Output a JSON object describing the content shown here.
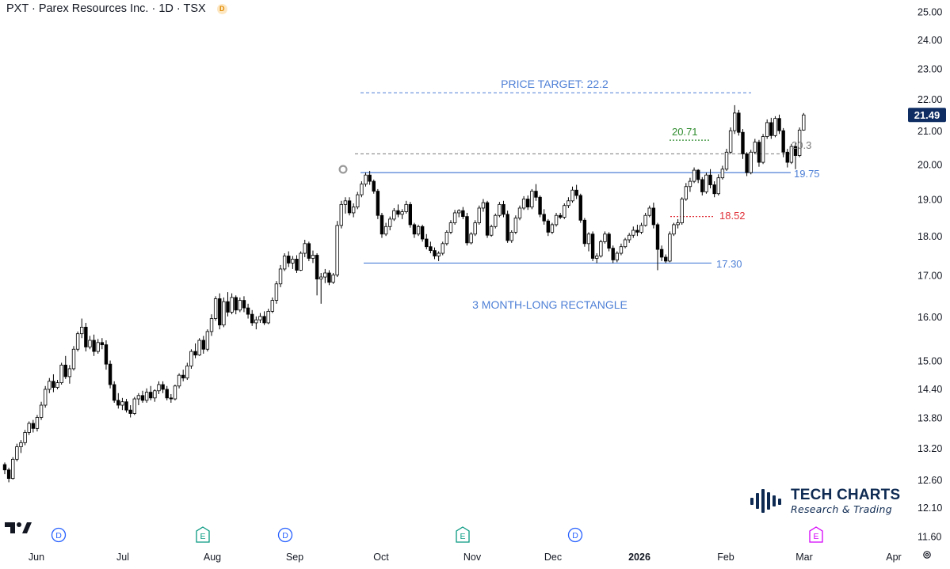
{
  "header": {
    "symbol_text": "PXT · Parex Resources Inc. · 1D · TSX",
    "badge": "D"
  },
  "branding": {
    "title": "TECH CHARTS",
    "subtitle": "Research & Trading"
  },
  "chart_data": {
    "type": "candlestick",
    "scale": "log",
    "yticks": [
      11.6,
      12.1,
      12.6,
      13.2,
      13.8,
      14.4,
      15.0,
      16.0,
      17.0,
      18.0,
      19.0,
      20.0,
      21.0,
      22.0,
      23.0,
      24.0,
      25.0
    ],
    "ylim": [
      11.4,
      25.6
    ],
    "months": [
      "Jun",
      "Jul",
      "Aug",
      "Sep",
      "Oct",
      "Nov",
      "Dec",
      "2026",
      "Feb",
      "Mar",
      "Apr"
    ],
    "last_price": "21.49",
    "annotations": {
      "price_target": "PRICE TARGET: 22.2",
      "pattern": "3 MONTH-LONG RECTANGLE",
      "level_upper": "19.75",
      "level_lower": "17.30",
      "level_203": "20.3",
      "level_2071": "20.71",
      "level_1852": "18.52"
    },
    "levels": {
      "target": 22.2,
      "upper": 19.75,
      "lower": 17.3,
      "l203": 20.3,
      "l2071": 20.71,
      "l1852": 18.52
    },
    "events": [
      {
        "type": "D",
        "month_index": 0
      },
      {
        "type": "E",
        "month_index": 2
      },
      {
        "type": "D",
        "month_index": 3
      },
      {
        "type": "E",
        "month_index": 5
      },
      {
        "type": "D",
        "month_index": 6
      },
      {
        "type": "E",
        "month_index": 9
      }
    ],
    "colors": {
      "up": "#ffffff",
      "down": "#000000",
      "line_blue": "#4d7fd6",
      "green": "#2e8b2e",
      "red": "#e0313a",
      "grey": "#7a7a7a",
      "event_blue": "#2962ff",
      "event_green": "#089981",
      "event_pink": "#d500f9"
    },
    "candles": [
      [
        12.88,
        12.92,
        12.7,
        12.78
      ],
      [
        12.78,
        12.82,
        12.55,
        12.62
      ],
      [
        12.62,
        13.02,
        12.6,
        12.98
      ],
      [
        12.98,
        13.28,
        12.94,
        13.22
      ],
      [
        13.22,
        13.35,
        13.1,
        13.3
      ],
      [
        13.3,
        13.55,
        13.25,
        13.5
      ],
      [
        13.5,
        13.72,
        13.45,
        13.68
      ],
      [
        13.68,
        13.75,
        13.5,
        13.58
      ],
      [
        13.58,
        13.85,
        13.52,
        13.8
      ],
      [
        13.8,
        14.12,
        13.75,
        14.05
      ],
      [
        14.05,
        14.45,
        14.0,
        14.38
      ],
      [
        14.38,
        14.62,
        14.3,
        14.55
      ],
      [
        14.55,
        14.7,
        14.32,
        14.42
      ],
      [
        14.42,
        14.58,
        14.38,
        14.52
      ],
      [
        14.52,
        14.95,
        14.48,
        14.9
      ],
      [
        14.9,
        15.1,
        14.6,
        14.65
      ],
      [
        14.65,
        14.9,
        14.5,
        14.82
      ],
      [
        14.82,
        15.32,
        14.78,
        15.25
      ],
      [
        15.25,
        15.65,
        15.2,
        15.6
      ],
      [
        15.6,
        15.95,
        15.5,
        15.75
      ],
      [
        15.75,
        15.85,
        15.2,
        15.3
      ],
      [
        15.3,
        15.55,
        15.25,
        15.45
      ],
      [
        15.45,
        15.58,
        15.1,
        15.2
      ],
      [
        15.2,
        15.48,
        15.15,
        15.4
      ],
      [
        15.4,
        15.5,
        15.25,
        15.35
      ],
      [
        15.35,
        15.45,
        14.8,
        14.92
      ],
      [
        14.92,
        15.0,
        14.4,
        14.48
      ],
      [
        14.48,
        14.55,
        14.1,
        14.15
      ],
      [
        14.15,
        14.3,
        13.98,
        14.05
      ],
      [
        14.05,
        14.2,
        13.95,
        14.12
      ],
      [
        14.12,
        14.18,
        13.9,
        13.95
      ],
      [
        13.95,
        14.05,
        13.8,
        13.88
      ],
      [
        13.88,
        14.22,
        13.85,
        14.18
      ],
      [
        14.18,
        14.3,
        14.05,
        14.25
      ],
      [
        14.25,
        14.35,
        14.1,
        14.15
      ],
      [
        14.15,
        14.4,
        14.1,
        14.32
      ],
      [
        14.32,
        14.45,
        14.15,
        14.2
      ],
      [
        14.2,
        14.38,
        14.12,
        14.35
      ],
      [
        14.35,
        14.55,
        14.28,
        14.48
      ],
      [
        14.48,
        14.55,
        14.3,
        14.38
      ],
      [
        14.38,
        14.45,
        14.15,
        14.2
      ],
      [
        14.2,
        14.28,
        14.1,
        14.18
      ],
      [
        14.18,
        14.48,
        14.15,
        14.45
      ],
      [
        14.45,
        14.72,
        14.4,
        14.68
      ],
      [
        14.68,
        14.8,
        14.55,
        14.62
      ],
      [
        14.62,
        14.95,
        14.58,
        14.88
      ],
      [
        14.88,
        15.25,
        14.82,
        15.2
      ],
      [
        15.2,
        15.38,
        15.05,
        15.12
      ],
      [
        15.12,
        15.5,
        15.1,
        15.45
      ],
      [
        15.45,
        15.55,
        15.15,
        15.25
      ],
      [
        15.25,
        15.7,
        15.2,
        15.65
      ],
      [
        15.65,
        16.05,
        15.55,
        15.95
      ],
      [
        15.95,
        16.48,
        15.9,
        16.42
      ],
      [
        16.42,
        16.55,
        15.7,
        15.8
      ],
      [
        15.8,
        16.45,
        15.75,
        16.35
      ],
      [
        16.35,
        16.58,
        16.0,
        16.1
      ],
      [
        16.1,
        16.55,
        16.05,
        16.45
      ],
      [
        16.45,
        16.5,
        16.05,
        16.15
      ],
      [
        16.15,
        16.45,
        16.1,
        16.38
      ],
      [
        16.38,
        16.48,
        16.1,
        16.2
      ],
      [
        16.2,
        16.3,
        15.95,
        16.05
      ],
      [
        16.05,
        16.15,
        15.78,
        15.85
      ],
      [
        15.85,
        16.0,
        15.7,
        15.92
      ],
      [
        15.92,
        16.08,
        15.85,
        16.0
      ],
      [
        16.0,
        16.12,
        15.8,
        15.85
      ],
      [
        15.85,
        16.18,
        15.82,
        16.12
      ],
      [
        16.12,
        16.45,
        16.08,
        16.38
      ],
      [
        16.38,
        16.85,
        16.3,
        16.78
      ],
      [
        16.78,
        17.25,
        16.7,
        17.15
      ],
      [
        17.15,
        17.55,
        17.1,
        17.48
      ],
      [
        17.48,
        17.6,
        17.2,
        17.3
      ],
      [
        17.3,
        17.48,
        17.15,
        17.4
      ],
      [
        17.4,
        17.5,
        17.05,
        17.12
      ],
      [
        17.12,
        17.6,
        17.1,
        17.55
      ],
      [
        17.55,
        17.9,
        17.45,
        17.8
      ],
      [
        17.8,
        17.85,
        17.35,
        17.42
      ],
      [
        17.42,
        17.62,
        17.3,
        17.5
      ],
      [
        17.5,
        17.55,
        16.5,
        16.9
      ],
      [
        16.9,
        17.05,
        16.3,
        16.95
      ],
      [
        16.95,
        17.15,
        16.8,
        17.05
      ],
      [
        17.05,
        17.12,
        16.75,
        16.82
      ],
      [
        16.82,
        17.05,
        16.78,
        17.0
      ],
      [
        17.0,
        18.4,
        16.95,
        18.28
      ],
      [
        18.28,
        18.95,
        18.2,
        18.85
      ],
      [
        18.85,
        19.05,
        18.6,
        18.95
      ],
      [
        18.95,
        19.05,
        18.55,
        18.62
      ],
      [
        18.62,
        18.88,
        18.5,
        18.78
      ],
      [
        18.78,
        19.2,
        18.72,
        19.12
      ],
      [
        19.12,
        19.5,
        19.05,
        19.42
      ],
      [
        19.42,
        19.75,
        19.35,
        19.68
      ],
      [
        19.68,
        19.8,
        19.4,
        19.5
      ],
      [
        19.5,
        19.55,
        19.15,
        19.22
      ],
      [
        19.22,
        19.28,
        18.45,
        18.55
      ],
      [
        18.55,
        18.62,
        17.95,
        18.05
      ],
      [
        18.05,
        18.35,
        18.0,
        18.25
      ],
      [
        18.25,
        18.52,
        18.15,
        18.45
      ],
      [
        18.45,
        18.75,
        18.4,
        18.68
      ],
      [
        18.68,
        18.85,
        18.5,
        18.58
      ],
      [
        18.58,
        18.72,
        18.45,
        18.65
      ],
      [
        18.65,
        18.95,
        18.6,
        18.85
      ],
      [
        18.85,
        18.92,
        18.22,
        18.3
      ],
      [
        18.3,
        18.35,
        17.95,
        18.05
      ],
      [
        18.05,
        18.3,
        18.0,
        18.25
      ],
      [
        18.25,
        18.3,
        17.85,
        17.92
      ],
      [
        17.92,
        18.05,
        17.65,
        17.72
      ],
      [
        17.72,
        17.85,
        17.55,
        17.62
      ],
      [
        17.62,
        17.7,
        17.4,
        17.48
      ],
      [
        17.48,
        17.6,
        17.35,
        17.55
      ],
      [
        17.55,
        17.85,
        17.5,
        17.8
      ],
      [
        17.8,
        18.15,
        17.75,
        18.1
      ],
      [
        18.1,
        18.42,
        18.05,
        18.35
      ],
      [
        18.35,
        18.7,
        18.3,
        18.62
      ],
      [
        18.62,
        18.72,
        18.5,
        18.68
      ],
      [
        18.68,
        18.78,
        18.45,
        18.52
      ],
      [
        18.52,
        18.62,
        17.75,
        17.82
      ],
      [
        17.82,
        18.1,
        17.78,
        18.05
      ],
      [
        18.05,
        18.42,
        18.0,
        18.35
      ],
      [
        18.35,
        18.82,
        18.3,
        18.75
      ],
      [
        18.75,
        19.0,
        18.65,
        18.9
      ],
      [
        18.9,
        18.95,
        17.95,
        18.02
      ],
      [
        18.02,
        18.3,
        17.98,
        18.25
      ],
      [
        18.25,
        18.6,
        18.2,
        18.55
      ],
      [
        18.55,
        18.92,
        18.5,
        18.85
      ],
      [
        18.85,
        18.95,
        18.5,
        18.58
      ],
      [
        18.58,
        18.68,
        17.82,
        17.88
      ],
      [
        17.88,
        18.15,
        17.82,
        18.1
      ],
      [
        18.1,
        18.55,
        18.05,
        18.48
      ],
      [
        18.48,
        18.82,
        18.42,
        18.75
      ],
      [
        18.75,
        19.08,
        18.7,
        19.0
      ],
      [
        19.0,
        19.1,
        18.7,
        18.78
      ],
      [
        18.78,
        19.28,
        18.72,
        19.22
      ],
      [
        19.22,
        19.42,
        18.95,
        19.05
      ],
      [
        19.05,
        19.1,
        18.5,
        18.58
      ],
      [
        18.58,
        18.72,
        18.3,
        18.4
      ],
      [
        18.4,
        18.45,
        18.0,
        18.1
      ],
      [
        18.1,
        18.35,
        18.05,
        18.3
      ],
      [
        18.3,
        18.62,
        18.25,
        18.55
      ],
      [
        18.55,
        18.62,
        18.45,
        18.5
      ],
      [
        18.5,
        18.88,
        18.45,
        18.82
      ],
      [
        18.82,
        19.05,
        18.75,
        18.95
      ],
      [
        18.95,
        19.35,
        18.9,
        19.25
      ],
      [
        19.25,
        19.4,
        19.0,
        19.1
      ],
      [
        19.1,
        19.15,
        18.35,
        18.42
      ],
      [
        18.42,
        18.48,
        17.72,
        17.8
      ],
      [
        17.8,
        18.1,
        17.6,
        18.05
      ],
      [
        18.05,
        18.12,
        17.35,
        17.42
      ],
      [
        17.42,
        17.55,
        17.3,
        17.48
      ],
      [
        17.48,
        17.9,
        17.44,
        17.85
      ],
      [
        17.85,
        18.12,
        17.8,
        18.05
      ],
      [
        18.05,
        18.1,
        17.6,
        17.68
      ],
      [
        17.68,
        17.75,
        17.3,
        17.38
      ],
      [
        17.38,
        17.6,
        17.32,
        17.55
      ],
      [
        17.55,
        17.8,
        17.5,
        17.72
      ],
      [
        17.72,
        17.95,
        17.68,
        17.9
      ],
      [
        17.9,
        18.08,
        17.82,
        18.02
      ],
      [
        18.02,
        18.25,
        17.95,
        18.15
      ],
      [
        18.15,
        18.3,
        18.0,
        18.1
      ],
      [
        18.1,
        18.35,
        18.05,
        18.28
      ],
      [
        18.28,
        18.62,
        18.25,
        18.55
      ],
      [
        18.55,
        18.82,
        18.5,
        18.75
      ],
      [
        18.75,
        18.9,
        18.2,
        18.3
      ],
      [
        18.3,
        18.35,
        17.12,
        17.65
      ],
      [
        17.65,
        17.75,
        17.35,
        17.45
      ],
      [
        17.45,
        17.52,
        17.3,
        17.35
      ],
      [
        17.35,
        18.12,
        17.32,
        18.05
      ],
      [
        18.05,
        18.35,
        18.0,
        18.3
      ],
      [
        18.3,
        18.45,
        18.2,
        18.35
      ],
      [
        18.35,
        19.05,
        18.3,
        19.0
      ],
      [
        19.0,
        19.45,
        18.95,
        19.35
      ],
      [
        19.35,
        19.6,
        19.2,
        19.5
      ],
      [
        19.5,
        19.9,
        19.45,
        19.82
      ],
      [
        19.82,
        19.85,
        19.45,
        19.55
      ],
      [
        19.55,
        19.62,
        19.1,
        19.2
      ],
      [
        19.2,
        19.75,
        19.15,
        19.68
      ],
      [
        19.68,
        19.85,
        19.3,
        19.4
      ],
      [
        19.4,
        19.5,
        19.05,
        19.15
      ],
      [
        19.15,
        19.7,
        19.1,
        19.6
      ],
      [
        19.6,
        19.95,
        19.55,
        19.85
      ],
      [
        19.85,
        20.45,
        19.8,
        20.35
      ],
      [
        20.35,
        21.1,
        20.3,
        21.0
      ],
      [
        21.0,
        21.8,
        20.9,
        21.55
      ],
      [
        21.55,
        21.65,
        20.85,
        20.95
      ],
      [
        20.95,
        21.05,
        20.15,
        20.3
      ],
      [
        20.3,
        20.35,
        19.65,
        19.75
      ],
      [
        19.75,
        20.42,
        19.7,
        20.35
      ],
      [
        20.35,
        20.75,
        20.3,
        20.65
      ],
      [
        20.65,
        20.72,
        19.92,
        20.05
      ],
      [
        20.05,
        20.9,
        20.0,
        20.82
      ],
      [
        20.82,
        21.35,
        20.75,
        21.25
      ],
      [
        21.25,
        21.4,
        20.75,
        20.85
      ],
      [
        20.85,
        21.45,
        20.8,
        21.38
      ],
      [
        21.38,
        21.5,
        20.9,
        21.0
      ],
      [
        21.0,
        21.08,
        20.2,
        20.35
      ],
      [
        20.35,
        20.45,
        19.9,
        20.05
      ],
      [
        20.05,
        20.6,
        20.0,
        20.52
      ],
      [
        20.52,
        20.62,
        19.85,
        20.25
      ],
      [
        20.25,
        21.1,
        20.2,
        21.02
      ],
      [
        21.02,
        21.55,
        21.0,
        21.49
      ]
    ]
  }
}
